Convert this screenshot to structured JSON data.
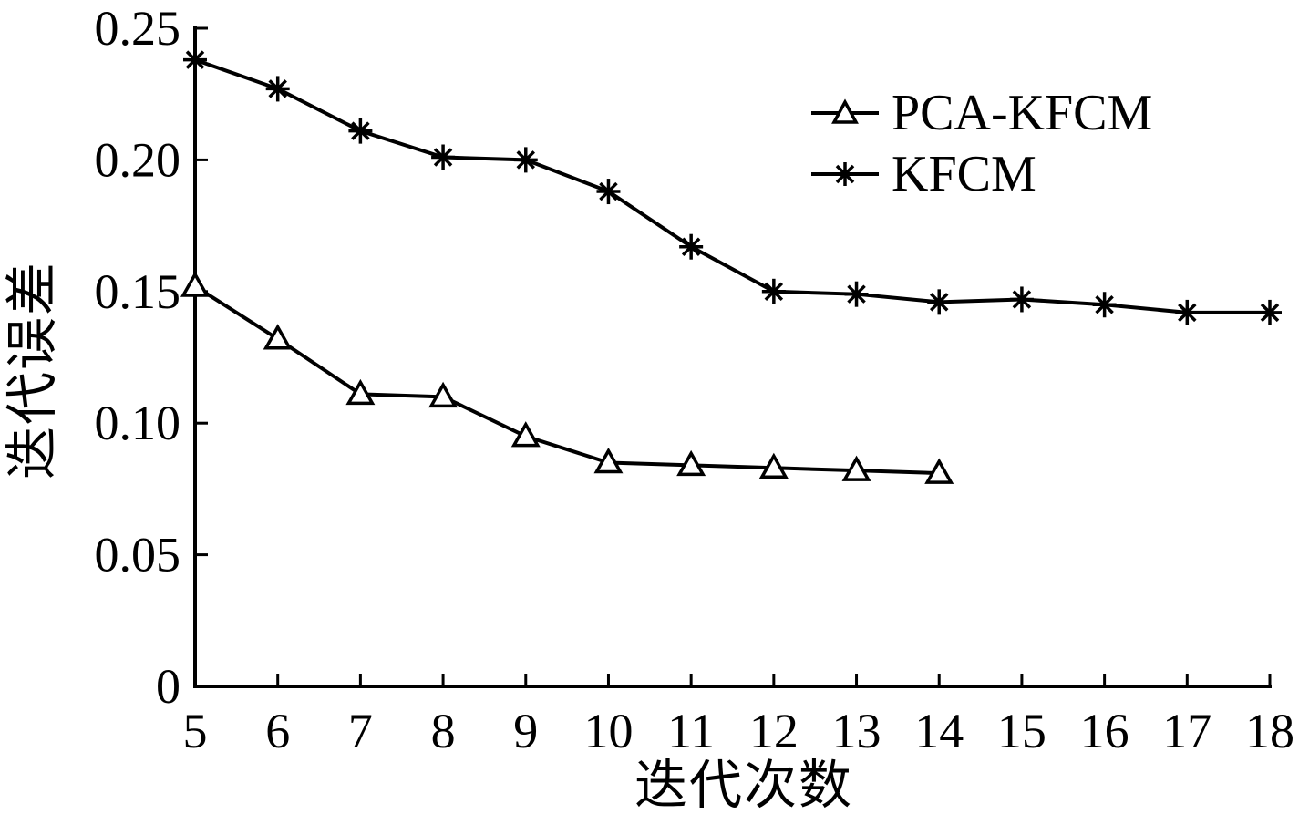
{
  "figure": {
    "background": "#ffffff",
    "ink_color": "#000000"
  },
  "chart_data": {
    "type": "line",
    "title": "",
    "xlabel": "迭代次数",
    "ylabel": "迭代误差",
    "xlim": [
      5,
      18
    ],
    "ylim": [
      0,
      0.25
    ],
    "x_ticks": [
      5,
      6,
      7,
      8,
      9,
      10,
      11,
      12,
      13,
      14,
      15,
      16,
      17,
      18
    ],
    "x_tick_labels": [
      "5",
      "6",
      "7",
      "8",
      "9",
      "10",
      "11",
      "12",
      "13",
      "14",
      "15",
      "16",
      "17",
      "18"
    ],
    "y_ticks": [
      0,
      0.05,
      0.1,
      0.15,
      0.2,
      0.25
    ],
    "y_tick_labels": [
      "0",
      "0.05",
      "0.10",
      "0.15",
      "0.20",
      "0.25"
    ],
    "grid": false,
    "legend": {
      "position": "upper-right",
      "border": false
    },
    "series": [
      {
        "name": "PCA-KFCM",
        "marker": "triangle",
        "color": "#000000",
        "x": [
          5,
          6,
          7,
          8,
          9,
          10,
          11,
          12,
          13,
          14
        ],
        "values": [
          0.152,
          0.132,
          0.111,
          0.11,
          0.095,
          0.085,
          0.084,
          0.083,
          0.082,
          0.081
        ]
      },
      {
        "name": "KFCM",
        "marker": "asterisk",
        "color": "#000000",
        "x": [
          5,
          6,
          7,
          8,
          9,
          10,
          11,
          12,
          13,
          14,
          15,
          16,
          17,
          18
        ],
        "values": [
          0.238,
          0.227,
          0.211,
          0.201,
          0.2,
          0.188,
          0.167,
          0.15,
          0.149,
          0.146,
          0.147,
          0.145,
          0.142,
          0.142
        ]
      }
    ]
  }
}
